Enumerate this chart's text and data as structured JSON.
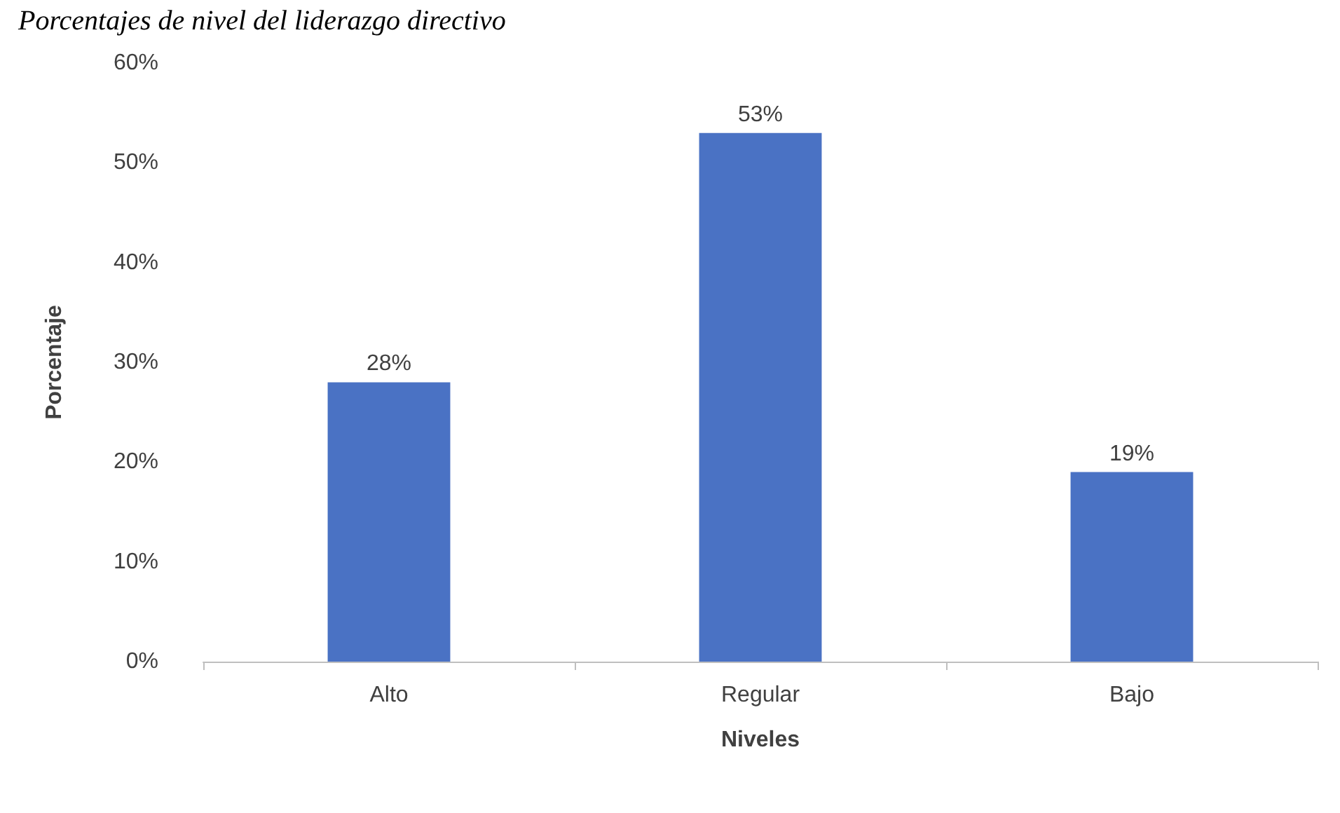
{
  "chart_data": {
    "type": "bar",
    "title": "Porcentajes de nivel del liderazgo directivo",
    "xlabel": "Niveles",
    "ylabel": "Porcentaje",
    "categories": [
      "Alto",
      "Regular",
      "Bajo"
    ],
    "values": [
      28,
      53,
      19
    ],
    "value_labels": [
      "28%",
      "53%",
      "19%"
    ],
    "color": "#4a72c4",
    "ylim": [
      0,
      60
    ],
    "yticks": [
      {
        "value": 0,
        "label": "0%"
      },
      {
        "value": 10,
        "label": "10%"
      },
      {
        "value": 20,
        "label": "20%"
      },
      {
        "value": 30,
        "label": "30%"
      },
      {
        "value": 40,
        "label": "40%"
      },
      {
        "value": 50,
        "label": "50%"
      },
      {
        "value": 60,
        "label": "60%"
      }
    ],
    "grid": false
  }
}
